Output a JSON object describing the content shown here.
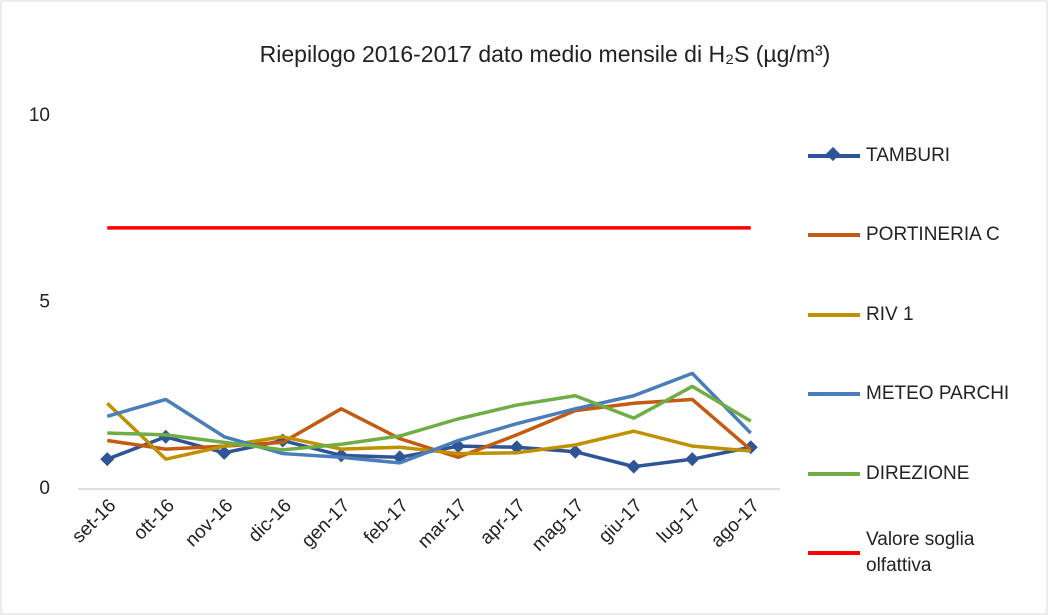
{
  "chart_data": {
    "type": "line",
    "title": "Riepilogo 2016-2017 dato medio mensile di H₂S (µg/m³)",
    "categories": [
      "set-16",
      "ott-16",
      "nov-16",
      "dic-16",
      "gen-17",
      "feb-17",
      "mar-17",
      "apr-17",
      "mag-17",
      "giu-17",
      "lug-17",
      "ago-17"
    ],
    "series": [
      {
        "name": "TAMBURI",
        "color": "#2f5597",
        "marker": "diamond",
        "values": [
          0.8,
          1.4,
          0.97,
          1.3,
          0.9,
          0.85,
          1.15,
          1.12,
          1.0,
          0.6,
          0.8,
          1.12
        ]
      },
      {
        "name": "PORTINERIA C",
        "color": "#c55a11",
        "values": [
          1.3,
          1.07,
          1.15,
          1.25,
          2.15,
          1.35,
          0.85,
          1.45,
          2.1,
          2.3,
          2.4,
          1.05
        ]
      },
      {
        "name": "RIV 1",
        "color": "#bf9000",
        "values": [
          2.3,
          0.8,
          1.15,
          1.4,
          1.07,
          1.12,
          0.95,
          0.97,
          1.18,
          1.55,
          1.15,
          1.02
        ]
      },
      {
        "name": "METEO PARCHI",
        "color": "#4a7ebb",
        "values": [
          1.95,
          2.4,
          1.4,
          0.95,
          0.85,
          0.7,
          1.3,
          1.75,
          2.15,
          2.5,
          3.1,
          1.5
        ]
      },
      {
        "name": "DIREZIONE",
        "color": "#70ad47",
        "values": [
          1.5,
          1.45,
          1.25,
          1.05,
          1.2,
          1.42,
          1.88,
          2.25,
          2.5,
          1.9,
          2.75,
          1.82
        ]
      },
      {
        "name": "Valore soglia olfattiva",
        "color": "#ff0000",
        "values": [
          7,
          7,
          7,
          7,
          7,
          7,
          7,
          7,
          7,
          7,
          7,
          7
        ]
      }
    ],
    "ylim": [
      0,
      10
    ],
    "yticks": [
      0,
      5,
      10
    ],
    "grid": false,
    "legend": "right"
  }
}
